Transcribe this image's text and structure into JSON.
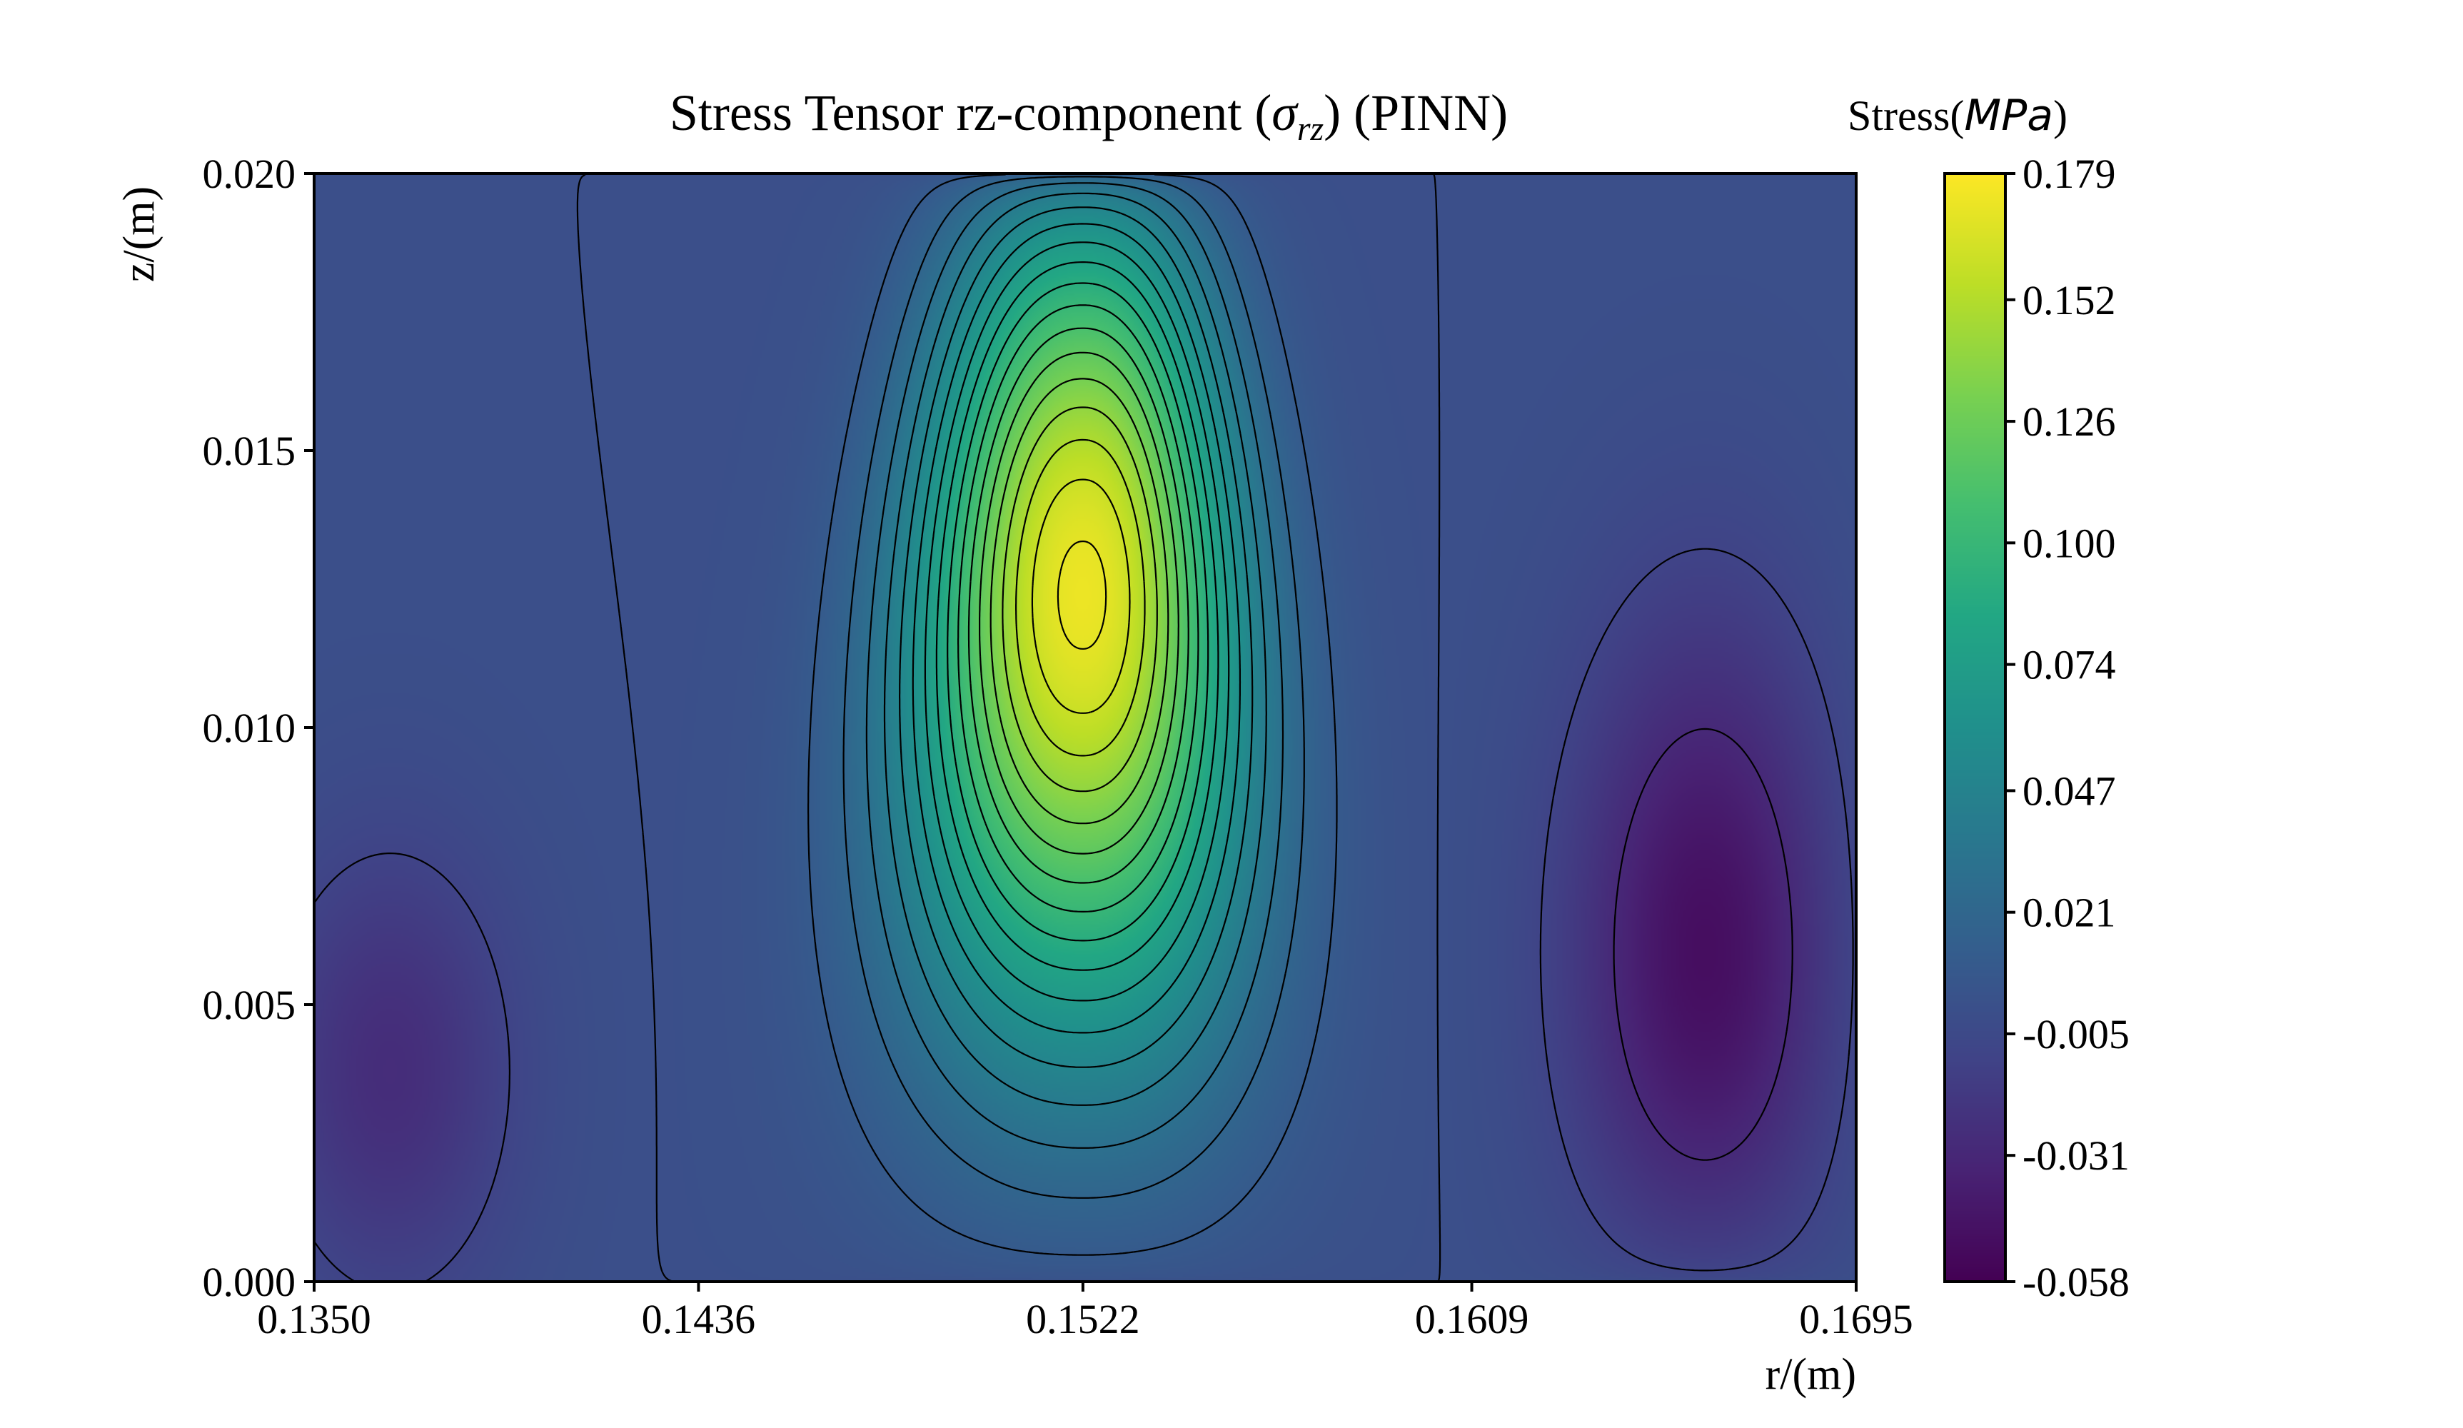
{
  "chart_data": {
    "type": "heatmap",
    "title": "Stress Tensor rz-component (σrz) (PINN)",
    "title_parts": {
      "before": "Stress Tensor rz-component (",
      "symbol": "σ",
      "subscript": "rz",
      "after": ") (PINN)"
    },
    "xlabel": "r/(m)",
    "ylabel": "z/(m)",
    "xlim": [
      0.135,
      0.1695
    ],
    "ylim": [
      0.0,
      0.02
    ],
    "xticks": [
      0.135,
      0.1436,
      0.1522,
      0.1609,
      0.1695
    ],
    "xtick_labels": [
      "0.1350",
      "0.1436",
      "0.1522",
      "0.1609",
      "0.1695"
    ],
    "yticks": [
      0.0,
      0.005,
      0.01,
      0.015,
      0.02
    ],
    "ytick_labels": [
      "0.000",
      "0.005",
      "0.010",
      "0.015",
      "0.020"
    ],
    "colormap": "viridis",
    "colorbar": {
      "title": "Stress(MPa)",
      "title_parts": {
        "text": "Stress(",
        "unit": "MPa",
        "close": ")"
      },
      "range": [
        -0.058,
        0.179
      ],
      "ticks": [
        0.179,
        0.152,
        0.126,
        0.1,
        0.074,
        0.047,
        0.021,
        -0.005,
        -0.031,
        -0.058
      ],
      "tick_labels": [
        "0.179",
        "0.152",
        "0.126",
        "0.100",
        "0.074",
        "0.047",
        "0.021",
        "-0.005",
        "-0.031",
        "-0.058"
      ]
    },
    "field": {
      "max_value": 0.179,
      "max_location": {
        "r": 0.1522,
        "z": 0.0133
      },
      "min_value": -0.058,
      "min_location": {
        "r": 0.1665,
        "z": 0.0053
      },
      "secondary_min_value": -0.027,
      "secondary_min_location": {
        "r": 0.1367,
        "z": 0.0038
      }
    },
    "contour_levels": [
      -0.05,
      -0.03,
      -0.01,
      0.0,
      0.01,
      0.02,
      0.03,
      0.04,
      0.05,
      0.06,
      0.07,
      0.08,
      0.09,
      0.1,
      0.11,
      0.12,
      0.13,
      0.14,
      0.15,
      0.16,
      0.17
    ],
    "negative_contours": "dashed",
    "grid": false
  }
}
